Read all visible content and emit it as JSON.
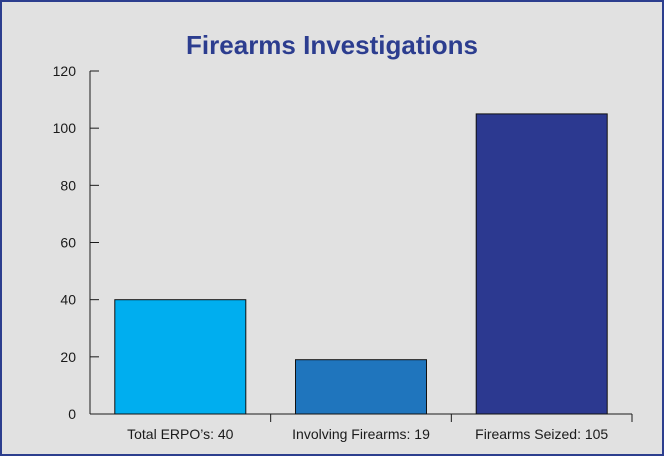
{
  "chart_data": {
    "type": "bar",
    "title": "Firearms Investigations",
    "categories": [
      "Total ERPO’s: 40",
      "Involving Firearms: 19",
      "Firearms Seized: 105"
    ],
    "values": [
      40,
      19,
      105
    ],
    "colors": [
      "#00aeef",
      "#1f75bd",
      "#2c3990"
    ],
    "ylim": [
      0,
      120
    ],
    "yticks": [
      0,
      20,
      40,
      60,
      80,
      100,
      120
    ],
    "grid": false,
    "legend": "none",
    "xlabel": "",
    "ylabel": ""
  },
  "style": {
    "frame_border": "#2c3e8e",
    "background": "#e1e1e1",
    "title_color": "#2c3d8f",
    "axis_color": "#1a1a1a"
  }
}
